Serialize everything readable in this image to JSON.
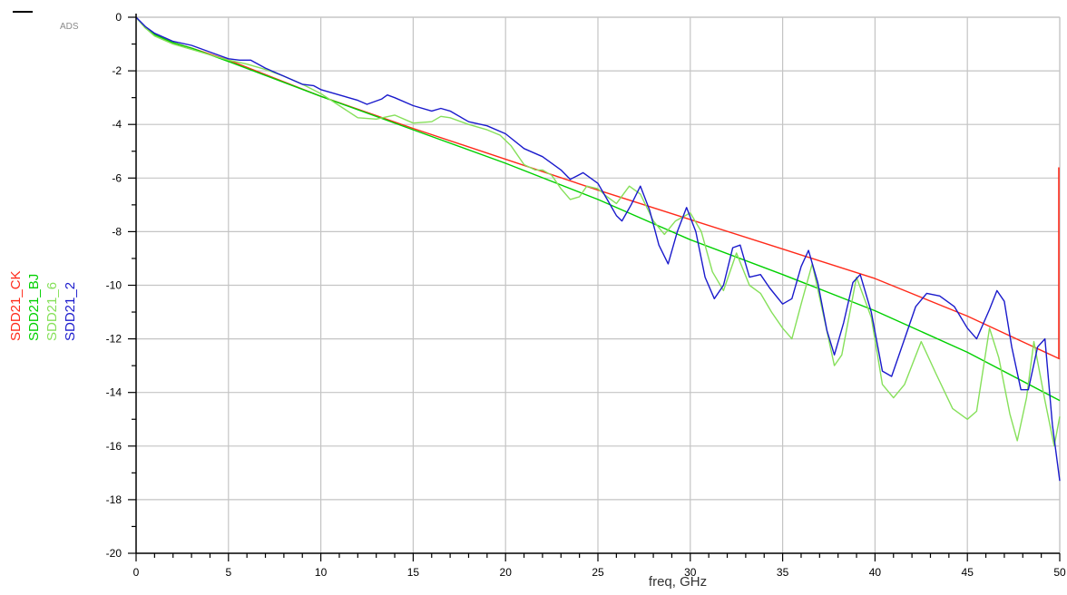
{
  "app": {
    "watermark": "ADS"
  },
  "chart_data": {
    "type": "line",
    "title": "",
    "xlabel": "freq, GHz",
    "ylabel": "",
    "xlim": [
      0,
      50
    ],
    "ylim": [
      -20,
      0
    ],
    "x_ticks": [
      0,
      5,
      10,
      15,
      20,
      25,
      30,
      35,
      40,
      45,
      50
    ],
    "y_ticks": [
      0,
      -2,
      -4,
      -6,
      -8,
      -10,
      -12,
      -14,
      -16,
      -18,
      -20
    ],
    "grid": true,
    "legend_placement": "left-vertical",
    "series": [
      {
        "name": "SDD21_CK",
        "color": "#ff2a1a",
        "points": [
          [
            0,
            0
          ],
          [
            0.5,
            -0.4
          ],
          [
            1,
            -0.65
          ],
          [
            2,
            -0.95
          ],
          [
            3,
            -1.15
          ],
          [
            5,
            -1.6
          ],
          [
            10,
            -2.95
          ],
          [
            15,
            -4.15
          ],
          [
            20,
            -5.3
          ],
          [
            25,
            -6.45
          ],
          [
            30,
            -7.55
          ],
          [
            35,
            -8.65
          ],
          [
            40,
            -9.75
          ],
          [
            45,
            -11.15
          ],
          [
            50,
            -12.75
          ]
        ]
      },
      {
        "name": "SDD21_BJ",
        "color": "#00d000",
        "points": [
          [
            0,
            0
          ],
          [
            0.5,
            -0.4
          ],
          [
            1,
            -0.65
          ],
          [
            2,
            -0.95
          ],
          [
            3,
            -1.15
          ],
          [
            5,
            -1.65
          ],
          [
            10,
            -2.95
          ],
          [
            15,
            -4.2
          ],
          [
            20,
            -5.45
          ],
          [
            25,
            -6.8
          ],
          [
            30,
            -8.3
          ],
          [
            35,
            -9.6
          ],
          [
            40,
            -10.95
          ],
          [
            45,
            -12.5
          ],
          [
            50,
            -14.3
          ]
        ]
      },
      {
        "name": "SDD21_6",
        "color": "#86e05a",
        "points": [
          [
            0,
            0
          ],
          [
            0.5,
            -0.4
          ],
          [
            1,
            -0.7
          ],
          [
            2,
            -1.0
          ],
          [
            3,
            -1.2
          ],
          [
            4,
            -1.4
          ],
          [
            5,
            -1.6
          ],
          [
            6,
            -1.75
          ],
          [
            7,
            -1.95
          ],
          [
            8,
            -2.2
          ],
          [
            9,
            -2.5
          ],
          [
            10,
            -2.85
          ],
          [
            11,
            -3.3
          ],
          [
            12,
            -3.75
          ],
          [
            13,
            -3.8
          ],
          [
            14,
            -3.65
          ],
          [
            15,
            -3.95
          ],
          [
            16,
            -3.9
          ],
          [
            16.5,
            -3.7
          ],
          [
            17,
            -3.75
          ],
          [
            18,
            -4.0
          ],
          [
            19,
            -4.2
          ],
          [
            19.7,
            -4.4
          ],
          [
            20.3,
            -4.8
          ],
          [
            21,
            -5.5
          ],
          [
            21.6,
            -5.7
          ],
          [
            22,
            -5.7
          ],
          [
            22.5,
            -5.9
          ],
          [
            23,
            -6.4
          ],
          [
            23.5,
            -6.8
          ],
          [
            24,
            -6.7
          ],
          [
            24.4,
            -6.3
          ],
          [
            25,
            -6.4
          ],
          [
            25.5,
            -6.7
          ],
          [
            26,
            -6.95
          ],
          [
            26.7,
            -6.3
          ],
          [
            27.3,
            -6.6
          ],
          [
            28,
            -7.6
          ],
          [
            28.6,
            -8.1
          ],
          [
            29.2,
            -7.6
          ],
          [
            30,
            -7.3
          ],
          [
            30.6,
            -8.0
          ],
          [
            31.2,
            -9.5
          ],
          [
            31.8,
            -10.2
          ],
          [
            32.5,
            -8.8
          ],
          [
            33.2,
            -10.0
          ],
          [
            33.8,
            -10.3
          ],
          [
            34.4,
            -11.0
          ],
          [
            35,
            -11.6
          ],
          [
            35.5,
            -12.0
          ],
          [
            36,
            -10.7
          ],
          [
            36.6,
            -9.2
          ],
          [
            37.3,
            -11.4
          ],
          [
            37.8,
            -13.0
          ],
          [
            38.2,
            -12.6
          ],
          [
            39,
            -9.7
          ],
          [
            39.8,
            -11.2
          ],
          [
            40.4,
            -13.7
          ],
          [
            41,
            -14.2
          ],
          [
            41.6,
            -13.7
          ],
          [
            42.5,
            -12.1
          ],
          [
            43.3,
            -13.3
          ],
          [
            44.2,
            -14.6
          ],
          [
            45,
            -15.0
          ],
          [
            45.5,
            -14.7
          ],
          [
            46.2,
            -11.6
          ],
          [
            46.7,
            -12.7
          ],
          [
            47.3,
            -14.8
          ],
          [
            47.7,
            -15.8
          ],
          [
            48.2,
            -14.2
          ],
          [
            48.6,
            -12.1
          ],
          [
            49.2,
            -14.3
          ],
          [
            49.7,
            -16.0
          ],
          [
            50,
            -14.9
          ]
        ]
      },
      {
        "name": "SDD21_2",
        "color": "#1a1acc",
        "points": [
          [
            0,
            0
          ],
          [
            0.5,
            -0.35
          ],
          [
            1,
            -0.6
          ],
          [
            2,
            -0.9
          ],
          [
            3,
            -1.05
          ],
          [
            4,
            -1.3
          ],
          [
            5,
            -1.55
          ],
          [
            5.6,
            -1.6
          ],
          [
            6.2,
            -1.6
          ],
          [
            7,
            -1.9
          ],
          [
            8,
            -2.2
          ],
          [
            9,
            -2.5
          ],
          [
            9.6,
            -2.55
          ],
          [
            10,
            -2.7
          ],
          [
            11,
            -2.9
          ],
          [
            12,
            -3.1
          ],
          [
            12.5,
            -3.25
          ],
          [
            13.3,
            -3.05
          ],
          [
            13.6,
            -2.9
          ],
          [
            14,
            -3.0
          ],
          [
            15,
            -3.3
          ],
          [
            16,
            -3.5
          ],
          [
            16.5,
            -3.4
          ],
          [
            17,
            -3.5
          ],
          [
            18,
            -3.9
          ],
          [
            19,
            -4.05
          ],
          [
            20,
            -4.35
          ],
          [
            21,
            -4.9
          ],
          [
            22,
            -5.2
          ],
          [
            23,
            -5.7
          ],
          [
            23.5,
            -6.05
          ],
          [
            24.2,
            -5.8
          ],
          [
            25,
            -6.2
          ],
          [
            25.5,
            -6.8
          ],
          [
            26,
            -7.4
          ],
          [
            26.3,
            -7.6
          ],
          [
            26.8,
            -7.0
          ],
          [
            27.3,
            -6.3
          ],
          [
            27.8,
            -7.2
          ],
          [
            28.3,
            -8.5
          ],
          [
            28.8,
            -9.2
          ],
          [
            29.3,
            -8.0
          ],
          [
            29.8,
            -7.1
          ],
          [
            30.3,
            -8.0
          ],
          [
            30.8,
            -9.7
          ],
          [
            31.3,
            -10.5
          ],
          [
            31.8,
            -10.0
          ],
          [
            32.3,
            -8.6
          ],
          [
            32.7,
            -8.5
          ],
          [
            33.2,
            -9.7
          ],
          [
            33.8,
            -9.6
          ],
          [
            34.3,
            -10.1
          ],
          [
            35,
            -10.7
          ],
          [
            35.5,
            -10.5
          ],
          [
            36,
            -9.3
          ],
          [
            36.4,
            -8.7
          ],
          [
            36.9,
            -9.9
          ],
          [
            37.4,
            -11.7
          ],
          [
            37.8,
            -12.6
          ],
          [
            38.3,
            -11.4
          ],
          [
            38.8,
            -9.9
          ],
          [
            39.2,
            -9.6
          ],
          [
            39.8,
            -11.0
          ],
          [
            40.4,
            -13.2
          ],
          [
            40.9,
            -13.4
          ],
          [
            41.6,
            -12.0
          ],
          [
            42.2,
            -10.8
          ],
          [
            42.8,
            -10.3
          ],
          [
            43.5,
            -10.4
          ],
          [
            44.3,
            -10.8
          ],
          [
            45,
            -11.6
          ],
          [
            45.5,
            -12.0
          ],
          [
            46.2,
            -10.9
          ],
          [
            46.6,
            -10.2
          ],
          [
            47,
            -10.6
          ],
          [
            47.4,
            -12.3
          ],
          [
            47.9,
            -13.9
          ],
          [
            48.3,
            -13.9
          ],
          [
            48.8,
            -12.3
          ],
          [
            49.2,
            -12.0
          ],
          [
            49.6,
            -15.2
          ],
          [
            50,
            -17.3
          ]
        ]
      }
    ]
  }
}
